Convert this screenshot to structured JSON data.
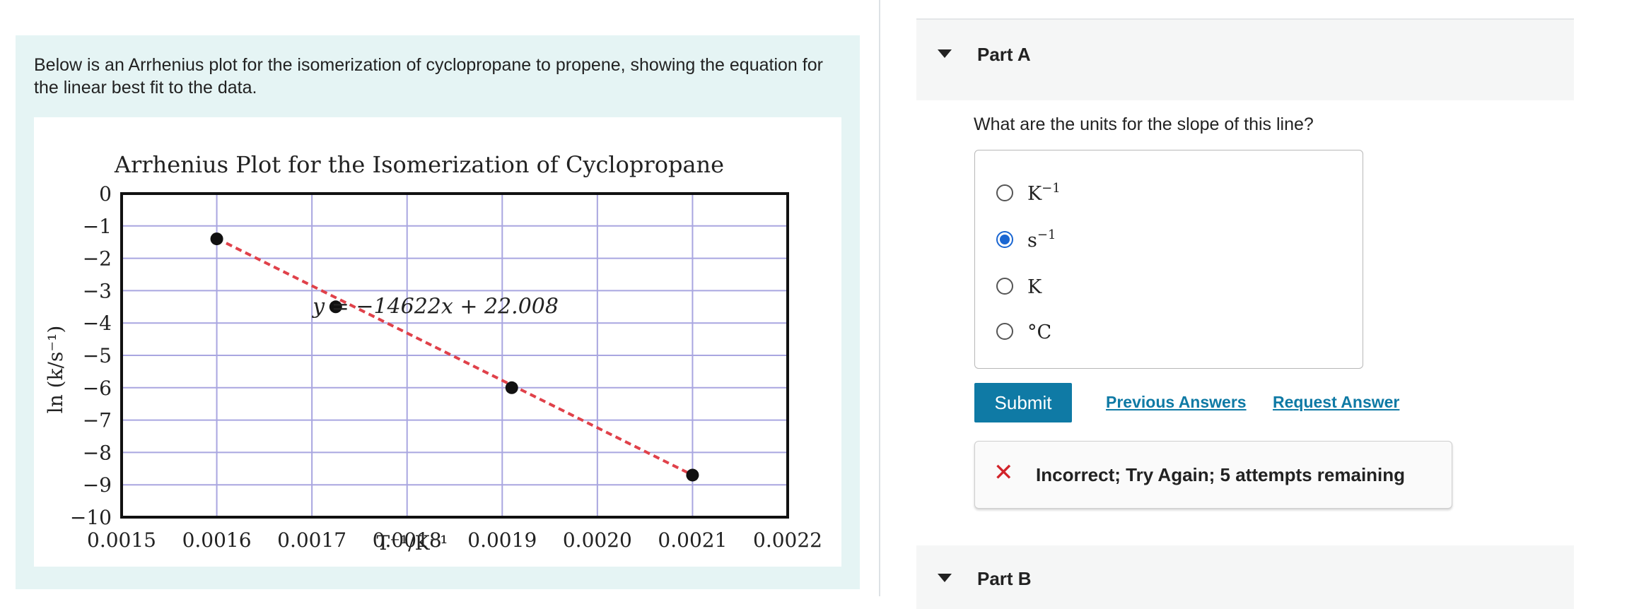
{
  "intro_text": "Below is an Arrhenius plot for the isomerization of cyclopropane to propene, showing the equation for the linear best fit to the data.",
  "chart_data": {
    "type": "scatter",
    "title": "Arrhenius Plot for the Isomerization of Cyclopropane",
    "xlabel": "T⁻¹/K⁻¹",
    "ylabel": "ln (k/s⁻¹)",
    "xlim": [
      0.0015,
      0.0022
    ],
    "ylim": [
      -10,
      0
    ],
    "x_ticks": [
      "0.0015",
      "0.0016",
      "0.0017",
      "0.0018",
      "0.0019",
      "0.0020",
      "0.0021",
      "0.0022"
    ],
    "y_ticks": [
      "0",
      "−1",
      "−2",
      "−3",
      "−4",
      "−5",
      "−6",
      "−7",
      "−8",
      "−9",
      "−10"
    ],
    "grid": true,
    "points": [
      {
        "x": 0.0016,
        "y": -1.4
      },
      {
        "x": 0.001725,
        "y": -3.5
      },
      {
        "x": 0.00191,
        "y": -6.0
      },
      {
        "x": 0.0021,
        "y": -8.7
      }
    ],
    "fit": {
      "slope": -14622,
      "intercept": 22.008,
      "x_range": [
        0.0016,
        0.0021
      ],
      "color": "#e0414a"
    },
    "equation": "y = −14622x + 22.008",
    "grid_color": "#a9a6e0",
    "point_color": "#111111"
  },
  "part_a": {
    "title": "Part A",
    "question": "What are the units for the slope of this line?",
    "options": [
      {
        "base": "K",
        "sup": "−1",
        "checked": false
      },
      {
        "base": "s",
        "sup": "−1",
        "checked": true
      },
      {
        "base": "K",
        "sup": "",
        "checked": false
      },
      {
        "base": "°C",
        "sup": "",
        "checked": false
      }
    ],
    "submit_label": "Submit",
    "previous_answers_label": "Previous Answers",
    "request_answer_label": "Request Answer",
    "feedback": "Incorrect; Try Again; 5 attempts remaining"
  },
  "part_b": {
    "title": "Part B"
  },
  "icons": {
    "caret": "caret-down-icon",
    "incorrect": "x-icon"
  },
  "colors": {
    "accent": "#0f7aa5",
    "panel_bg": "#e5f4f4",
    "error": "#d2232a",
    "radio_checked": "#1a66d2"
  }
}
